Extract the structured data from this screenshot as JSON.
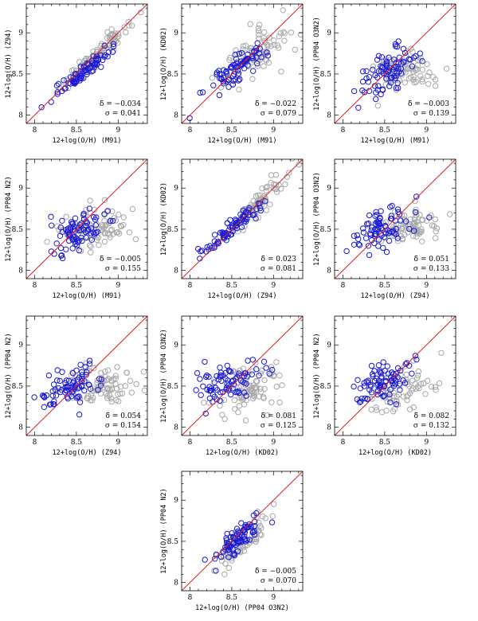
{
  "chart_data": [
    {
      "type": "scatter",
      "xlabel": "12+log(O/H)  (M91)",
      "ylabel": "12+log(O/H)  (Z94)",
      "xlim": [
        7.9,
        9.35
      ],
      "ylim": [
        7.9,
        9.35
      ],
      "xticks": [
        "8",
        "8.5",
        "9"
      ],
      "yticks": [
        "8",
        "8.5",
        "9"
      ],
      "delta_label": "δ̄ = −0.034",
      "sigma_label": "σ = 0.041",
      "blue_center": [
        8.55,
        8.5
      ],
      "blue_spread": [
        0.17,
        0.14
      ],
      "blue_corr": 0.95,
      "gray_center": [
        8.75,
        8.75
      ],
      "gray_spread": [
        0.2,
        0.2
      ],
      "gray_corr": 0.95,
      "one_to_one": true
    },
    {
      "type": "scatter",
      "xlabel": "12+log(O/H)  (M91)",
      "ylabel": "12+log(O/H)  (KD02)",
      "xlim": [
        7.9,
        9.35
      ],
      "ylim": [
        7.9,
        9.35
      ],
      "xticks": [
        "8",
        "8.5",
        "9"
      ],
      "yticks": [
        "8",
        "8.5",
        "9"
      ],
      "delta_label": "δ̄ = −0.022",
      "sigma_label": "σ = 0.079",
      "blue_center": [
        8.55,
        8.55
      ],
      "blue_spread": [
        0.17,
        0.14
      ],
      "blue_corr": 0.85,
      "gray_center": [
        8.75,
        8.7
      ],
      "gray_spread": [
        0.22,
        0.2
      ],
      "gray_corr": 0.7,
      "one_to_one": true
    },
    {
      "type": "scatter",
      "xlabel": "12+log(O/H)  (M91)",
      "ylabel": "12+log(O/H)  (PP04 O3N2)",
      "xlim": [
        7.9,
        9.35
      ],
      "ylim": [
        7.9,
        9.35
      ],
      "xticks": [
        "8",
        "8.5",
        "9"
      ],
      "yticks": [
        "8",
        "8.5",
        "9"
      ],
      "delta_label": "δ̄ = −0.003",
      "sigma_label": "σ = 0.139",
      "blue_center": [
        8.55,
        8.55
      ],
      "blue_spread": [
        0.17,
        0.14
      ],
      "blue_corr": 0.5,
      "gray_center": [
        8.75,
        8.55
      ],
      "gray_spread": [
        0.22,
        0.12
      ],
      "gray_corr": 0.1,
      "one_to_one": true
    },
    {
      "type": "scatter",
      "xlabel": "12+log(O/H)  (M91)",
      "ylabel": "12+log(O/H)  (PP04 N2)",
      "xlim": [
        7.9,
        9.35
      ],
      "ylim": [
        7.9,
        9.35
      ],
      "xticks": [
        "8",
        "8.5",
        "9"
      ],
      "yticks": [
        "8",
        "8.5",
        "9"
      ],
      "delta_label": "δ̄ = −0.005",
      "sigma_label": "σ = 0.155",
      "blue_center": [
        8.5,
        8.5
      ],
      "blue_spread": [
        0.18,
        0.14
      ],
      "blue_corr": 0.4,
      "gray_center": [
        8.75,
        8.5
      ],
      "gray_spread": [
        0.22,
        0.12
      ],
      "gray_corr": 0.1,
      "one_to_one": true
    },
    {
      "type": "scatter",
      "xlabel": "12+log(O/H)  (Z94)",
      "ylabel": "12+log(O/H)  (KD02)",
      "xlim": [
        7.9,
        9.35
      ],
      "ylim": [
        7.9,
        9.35
      ],
      "xticks": [
        "8",
        "8.5",
        "9"
      ],
      "yticks": [
        "8",
        "8.5",
        "9"
      ],
      "delta_label": "δ̄ = 0.023",
      "sigma_label": "σ = 0.081",
      "blue_center": [
        8.5,
        8.5
      ],
      "blue_spread": [
        0.17,
        0.14
      ],
      "blue_corr": 0.92,
      "gray_center": [
        8.8,
        8.8
      ],
      "gray_spread": [
        0.2,
        0.2
      ],
      "gray_corr": 0.92,
      "one_to_one": true
    },
    {
      "type": "scatter",
      "xlabel": "12+log(O/H)  (Z94)",
      "ylabel": "12+log(O/H)  (PP04 O3N2)",
      "xlim": [
        7.9,
        9.35
      ],
      "ylim": [
        7.9,
        9.35
      ],
      "xticks": [
        "8",
        "8.5",
        "9"
      ],
      "yticks": [
        "8",
        "8.5",
        "9"
      ],
      "delta_label": "δ̄ = 0.051",
      "sigma_label": "σ = 0.133",
      "blue_center": [
        8.45,
        8.5
      ],
      "blue_spread": [
        0.18,
        0.14
      ],
      "blue_corr": 0.55,
      "gray_center": [
        8.8,
        8.55
      ],
      "gray_spread": [
        0.22,
        0.1
      ],
      "gray_corr": 0.2,
      "one_to_one": true
    },
    {
      "type": "scatter",
      "xlabel": "12+log(O/H)  (Z94)",
      "ylabel": "12+log(O/H)  (PP04 N2)",
      "xlim": [
        7.9,
        9.35
      ],
      "ylim": [
        7.9,
        9.35
      ],
      "xticks": [
        "8",
        "8.5",
        "9"
      ],
      "yticks": [
        "8",
        "8.5",
        "9"
      ],
      "delta_label": "δ̄ = 0.054",
      "sigma_label": "σ = 0.154",
      "blue_center": [
        8.45,
        8.5
      ],
      "blue_spread": [
        0.18,
        0.14
      ],
      "blue_corr": 0.45,
      "gray_center": [
        8.8,
        8.5
      ],
      "gray_spread": [
        0.22,
        0.12
      ],
      "gray_corr": 0.1,
      "one_to_one": true
    },
    {
      "type": "scatter",
      "xlabel": "12+log(O/H)  (KD02)",
      "ylabel": "12+log(O/H)  (PP04 O3N2)",
      "xlim": [
        7.9,
        9.35
      ],
      "ylim": [
        7.9,
        9.35
      ],
      "xticks": [
        "8",
        "8.5",
        "9"
      ],
      "yticks": [
        "8",
        "8.5",
        "9"
      ],
      "delta_label": "δ̄ = 0.081",
      "sigma_label": "σ = 0.125",
      "blue_center": [
        8.45,
        8.55
      ],
      "blue_spread": [
        0.18,
        0.14
      ],
      "blue_corr": 0.45,
      "gray_center": [
        8.7,
        8.45
      ],
      "gray_spread": [
        0.2,
        0.15
      ],
      "gray_corr": 0.3,
      "one_to_one": true
    },
    {
      "type": "scatter",
      "xlabel": "12+log(O/H)  (KD02)",
      "ylabel": "12+log(O/H)  (PP04 N2)",
      "xlim": [
        7.9,
        9.35
      ],
      "ylim": [
        7.9,
        9.35
      ],
      "xticks": [
        "8",
        "8.5",
        "9"
      ],
      "yticks": [
        "8",
        "8.5",
        "9"
      ],
      "delta_label": "δ̄ = 0.082",
      "sigma_label": "σ = 0.132",
      "blue_center": [
        8.45,
        8.55
      ],
      "blue_spread": [
        0.18,
        0.14
      ],
      "blue_corr": 0.4,
      "gray_center": [
        8.7,
        8.45
      ],
      "gray_spread": [
        0.2,
        0.15
      ],
      "gray_corr": 0.3,
      "one_to_one": true
    },
    {
      "type": "scatter",
      "xlabel": "12+log(O/H)  (PP04 O3N2)",
      "ylabel": "12+log(O/H)  (PP04 N2)",
      "xlim": [
        7.9,
        9.35
      ],
      "ylim": [
        7.9,
        9.35
      ],
      "xticks": [
        "8",
        "8.5",
        "9"
      ],
      "yticks": [
        "8",
        "8.5",
        "9"
      ],
      "delta_label": "δ̄ = −0.005",
      "sigma_label": "σ = 0.070",
      "blue_center": [
        8.55,
        8.5
      ],
      "blue_spread": [
        0.15,
        0.15
      ],
      "blue_corr": 0.88,
      "gray_center": [
        8.65,
        8.5
      ],
      "gray_spread": [
        0.15,
        0.15
      ],
      "gray_corr": 0.8,
      "one_to_one": true
    }
  ],
  "colors": {
    "blue": "#1a1ad6",
    "gray": "#a8a8a8",
    "line": "#e02020",
    "axis": "#000000"
  }
}
